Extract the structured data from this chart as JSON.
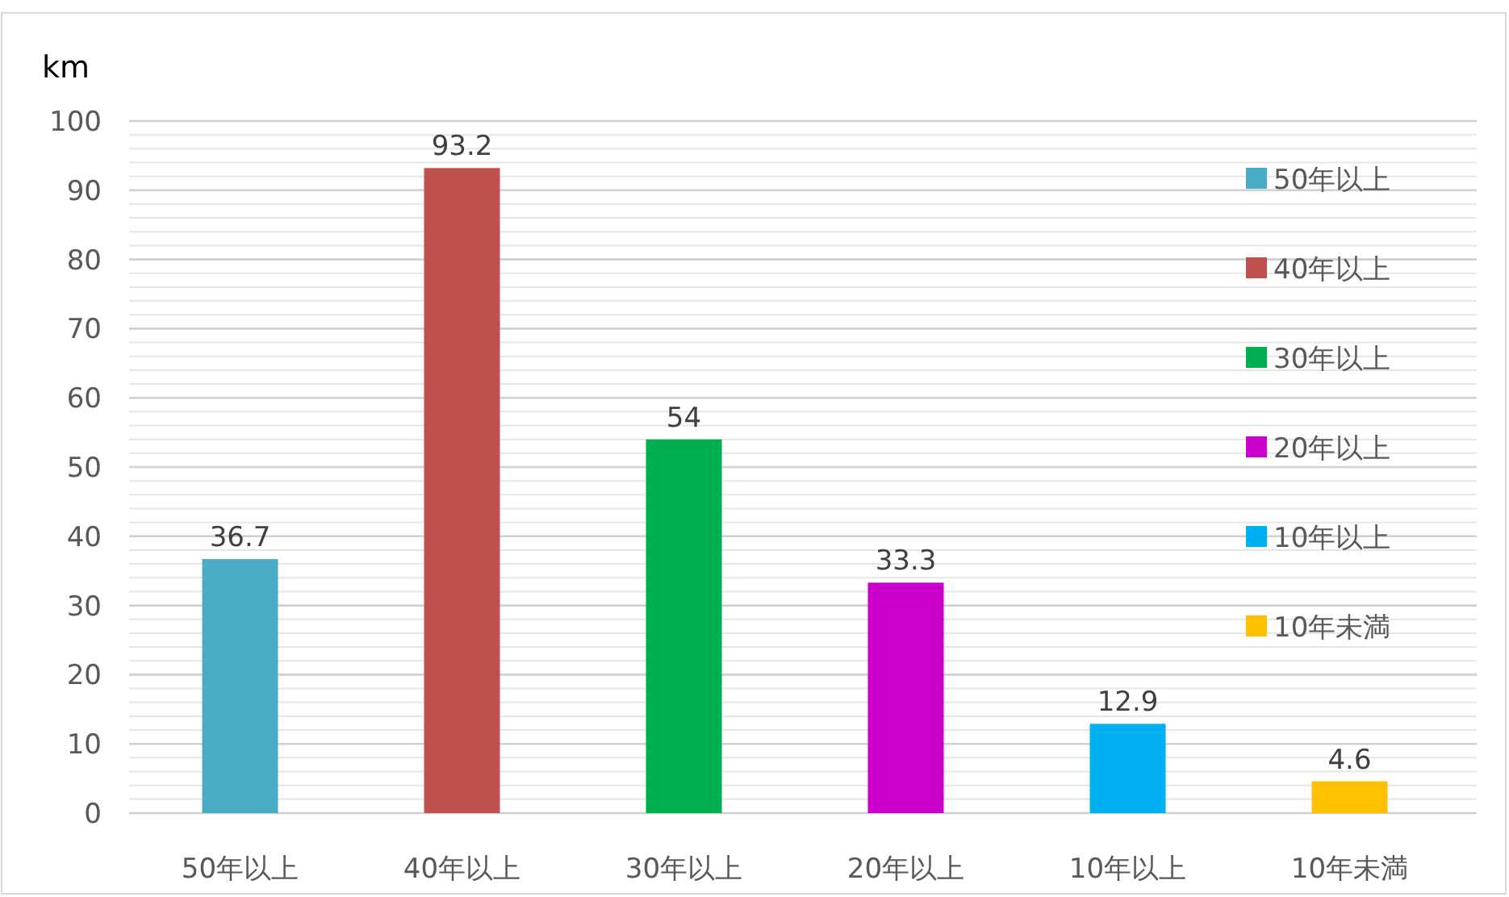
{
  "chart_data": {
    "type": "bar",
    "ylabel": "km",
    "categories": [
      "50年以上",
      "40年以上",
      "30年以上",
      "20年以上",
      "10年以上",
      "10年未満"
    ],
    "series": [
      {
        "name": "50年以上",
        "color": "#4bacc6",
        "values": [
          36.7,
          null,
          null,
          null,
          null,
          null
        ]
      },
      {
        "name": "40年以上",
        "color": "#c0504d",
        "values": [
          null,
          93.2,
          null,
          null,
          null,
          null
        ]
      },
      {
        "name": "30年以上",
        "color": "#00b050",
        "values": [
          null,
          null,
          54,
          null,
          null,
          null
        ]
      },
      {
        "name": "20年以上",
        "color": "#cc00cc",
        "values": [
          null,
          null,
          null,
          33.3,
          null,
          null
        ]
      },
      {
        "name": "10年以上",
        "color": "#00b0f0",
        "values": [
          null,
          null,
          null,
          null,
          12.9,
          null
        ]
      },
      {
        "name": "10年未満",
        "color": "#ffc000",
        "values": [
          null,
          null,
          null,
          null,
          null,
          4.6
        ]
      }
    ],
    "ylim": [
      0,
      100
    ],
    "yticks": [
      0,
      10,
      20,
      30,
      40,
      50,
      60,
      70,
      80,
      90,
      100
    ],
    "grid": "y",
    "legend": "right",
    "data_labels": true
  }
}
